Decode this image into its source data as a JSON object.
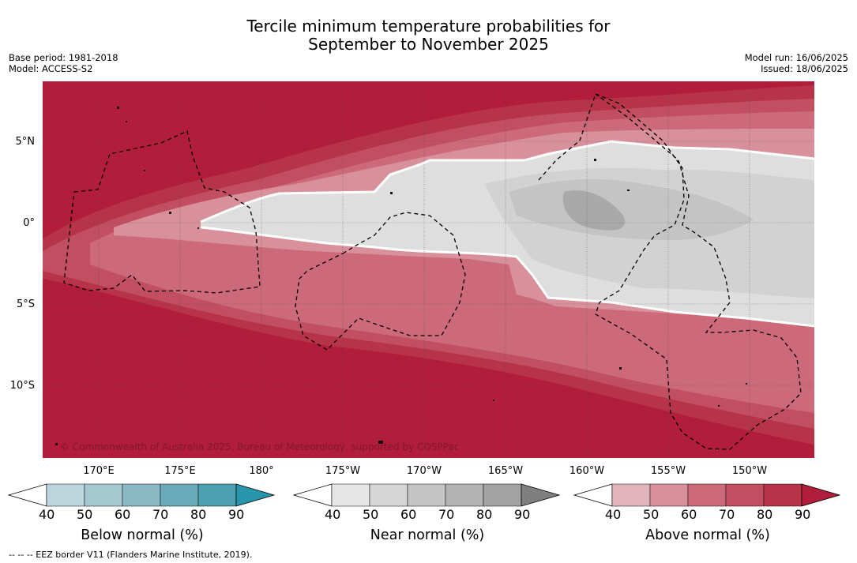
{
  "header": {
    "title_line1": "Tercile minimum temperature probabilities for",
    "title_line2": "September to November 2025",
    "base_period": "Base period: 1981-2018",
    "model": "Model: ACCESS-S2",
    "model_run": "Model run: 16/06/2025",
    "issued": "Issued: 18/06/2025"
  },
  "map": {
    "latitude_labels": [
      "5°N",
      "0°",
      "5°S",
      "10°S"
    ],
    "longitude_labels": [
      "170°E",
      "175°E",
      "180°",
      "175°W",
      "170°W",
      "165°W",
      "160°W",
      "155°W",
      "150°W"
    ],
    "copyright": "© Commonwealth of Australia 2025, Bureau of Meteorology, supported by COSPPac",
    "lon_range": [
      "167°E",
      "148°W"
    ],
    "lat_range": [
      "8.4°N",
      "14.5°S"
    ]
  },
  "colorbars": [
    {
      "title": "Below normal (%)",
      "ticks": [
        "40",
        "50",
        "60",
        "70",
        "80",
        "90"
      ],
      "colors": [
        "#ffffff",
        "#bcd5dc",
        "#a6c8d0",
        "#8ab8c4",
        "#6aa9b8",
        "#4aa0b0",
        "#2796ad"
      ]
    },
    {
      "title": "Near normal (%)",
      "ticks": [
        "40",
        "50",
        "60",
        "70",
        "80",
        "90"
      ],
      "colors": [
        "#ffffff",
        "#e6e6e6",
        "#d6d6d6",
        "#c5c5c5",
        "#b3b3b3",
        "#a3a3a3",
        "#7f7f7f"
      ]
    },
    {
      "title": "Above normal (%)",
      "ticks": [
        "40",
        "50",
        "60",
        "70",
        "80",
        "90"
      ],
      "colors": [
        "#ffffff",
        "#e1b3bb",
        "#d8909b",
        "#cc6a79",
        "#c14f61",
        "#b73448",
        "#b11d3a"
      ]
    }
  ],
  "footnote": "--  --  -- EEZ border V11 (Flanders Marine Institute, 2019)."
}
